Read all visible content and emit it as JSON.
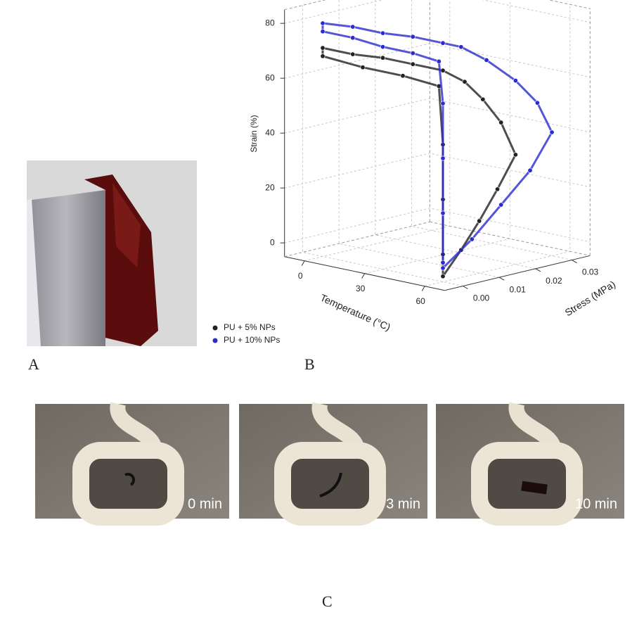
{
  "panel_labels": [
    "A",
    "B",
    "C"
  ],
  "chart_data": {
    "type": "scatter3d",
    "x_label": "Temperature (°C)",
    "y_label": "Stress (MPa)",
    "z_label": "Strain (%)",
    "xlim": [
      -10,
      70
    ],
    "ylim": [
      -0.005,
      0.035
    ],
    "zlim": [
      -5,
      85
    ],
    "xticks": [
      0,
      30,
      60
    ],
    "yticks": [
      {
        "value": 0,
        "label": "0.00"
      },
      {
        "value": 0.01,
        "label": "0.01"
      },
      {
        "value": 0.02,
        "label": "0.02"
      },
      {
        "value": 0.03,
        "label": "0.03"
      }
    ],
    "zticks": [
      0,
      20,
      40,
      60,
      80
    ],
    "grid": true,
    "legend": "lower left",
    "series": [
      {
        "name": "PU + 5% NPs",
        "color": "#222222",
        "temperature": [
          60,
          60,
          60,
          60,
          60,
          60,
          60,
          60,
          60,
          45,
          30,
          15,
          0,
          0,
          20,
          40,
          58,
          60,
          60,
          60,
          60
        ],
        "stress": [
          0,
          0.005,
          0.01,
          0.015,
          0.02,
          0.016,
          0.011,
          0.006,
          0,
          0,
          0,
          0,
          0,
          0,
          0,
          0,
          0,
          0,
          0,
          0,
          0
        ],
        "strain": [
          -3,
          5,
          14,
          24,
          35,
          48,
          58,
          66,
          72,
          72,
          72,
          71,
          71,
          68,
          67,
          67,
          66,
          45,
          25,
          5,
          -3
        ]
      },
      {
        "name": "PU + 10% NPs",
        "color": "#2a2ad0",
        "temperature": [
          60,
          60,
          60,
          60,
          60,
          60,
          60,
          60,
          60,
          60,
          45,
          30,
          15,
          0,
          0,
          15,
          30,
          45,
          58,
          60,
          60,
          60,
          60
        ],
        "stress": [
          0,
          0.008,
          0.016,
          0.024,
          0.03,
          0.026,
          0.02,
          0.012,
          0.005,
          0,
          0,
          0,
          0,
          0,
          0,
          0,
          0,
          0,
          0,
          0,
          0,
          0,
          0
        ],
        "strain": [
          0,
          8,
          18,
          28,
          40,
          52,
          62,
          72,
          79,
          82,
          82,
          81,
          81,
          80,
          77,
          77,
          76,
          76,
          75,
          60,
          40,
          20,
          2
        ]
      }
    ]
  },
  "panel_c": {
    "time_labels": [
      "0 min",
      "3 min",
      "10 min"
    ]
  }
}
